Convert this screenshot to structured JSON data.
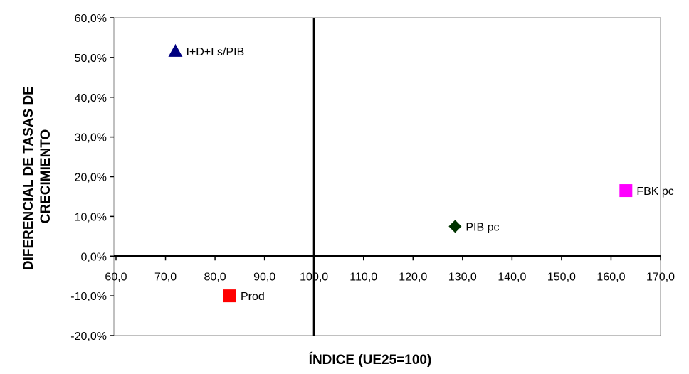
{
  "chart_data": {
    "type": "scatter",
    "xlabel": "ÍNDICE (UE25=100)",
    "ylabel": "DIFERENCIAL DE TASAS DE CRECIMIENTO",
    "ylabel_lines": [
      "DIFERENCIAL DE TASAS DE",
      "CRECIMIENTO"
    ],
    "xlim": [
      60,
      170
    ],
    "ylim": [
      -20,
      60
    ],
    "x_ticks": [
      60,
      70,
      80,
      90,
      100,
      110,
      120,
      130,
      140,
      150,
      160,
      170
    ],
    "x_tick_labels": [
      "60,0",
      "70,0",
      "80,0",
      "90,0",
      "100,0",
      "110,0",
      "120,0",
      "130,0",
      "140,0",
      "150,0",
      "160,0",
      "170,0"
    ],
    "y_ticks": [
      -20,
      -10,
      0,
      10,
      20,
      30,
      40,
      50,
      60
    ],
    "y_tick_labels": [
      "-20,0%",
      "-10,0%",
      "0,0%",
      "10,0%",
      "20,0%",
      "30,0%",
      "40,0%",
      "50,0%",
      "60,0%"
    ],
    "crosshair_x": 100,
    "crosshair_y": 0,
    "grid": false,
    "points": [
      {
        "label": "I+D+I s/PIB",
        "x": 72,
        "y": 51.6,
        "marker": "triangle",
        "color": "#000080"
      },
      {
        "label": "PIB pc",
        "x": 128.5,
        "y": 7.5,
        "marker": "diamond",
        "color": "#003300"
      },
      {
        "label": "FBK pc",
        "x": 163,
        "y": 16.5,
        "marker": "square",
        "color": "#FF00FF"
      },
      {
        "label": "Prod",
        "x": 83,
        "y": -10,
        "marker": "square",
        "color": "#FF0000"
      }
    ]
  }
}
